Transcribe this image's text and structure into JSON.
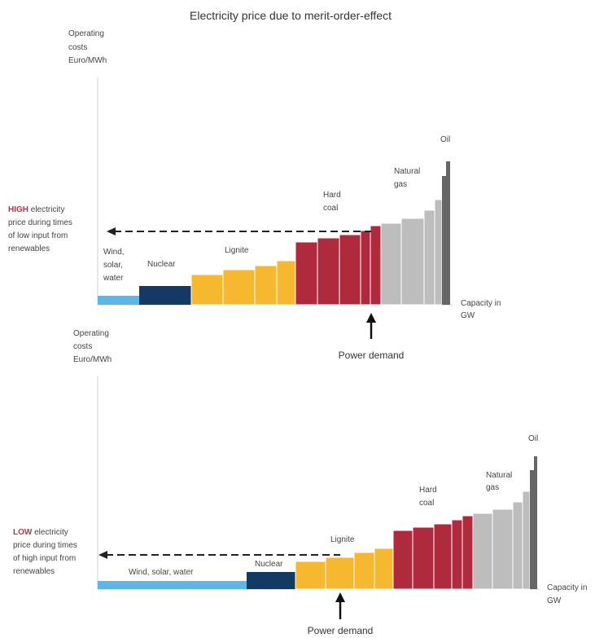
{
  "title": "Electricity price due to merit-order-effect",
  "colors": {
    "renewables": "#5bb8e6",
    "nuclear": "#123a63",
    "lignite": "#f5b82e",
    "coal": "#b02a3e",
    "gas": "#bdbdbd",
    "oil": "#666666",
    "emphasis": "#c0304a"
  },
  "top": {
    "y_axis_label": [
      "Operating",
      "costs",
      "Euro/MWh"
    ],
    "x_axis_label": [
      "Capacity in",
      "GW"
    ],
    "price_emph": "HIGH",
    "price_rest_1": " electricity",
    "price_lines": [
      "price during times",
      "of low input from",
      "renewables"
    ],
    "labels": {
      "renewables": [
        "Wind,",
        "solar,",
        "water"
      ],
      "nuclear": "Nuclear",
      "lignite": "Lignite",
      "coal": [
        "Hard",
        "coal"
      ],
      "gas": [
        "Natural",
        "gas"
      ],
      "oil": "Oil"
    },
    "demand": "Power demand"
  },
  "bottom": {
    "y_axis_label": [
      "Operating",
      "costs",
      "Euro/MWh"
    ],
    "x_axis_label": [
      "Capacity in",
      "GW"
    ],
    "price_emph": "LOW",
    "price_rest_1": " electricity",
    "price_lines": [
      "price during times",
      "of high input from",
      "renewables"
    ],
    "labels": {
      "renewables": "Wind, solar, water",
      "nuclear": "Nuclear",
      "lignite": "Lignite",
      "coal": [
        "Hard",
        "coal"
      ],
      "gas": [
        "Natural",
        "gas"
      ],
      "oil": "Oil"
    },
    "demand": "Power demand"
  }
}
